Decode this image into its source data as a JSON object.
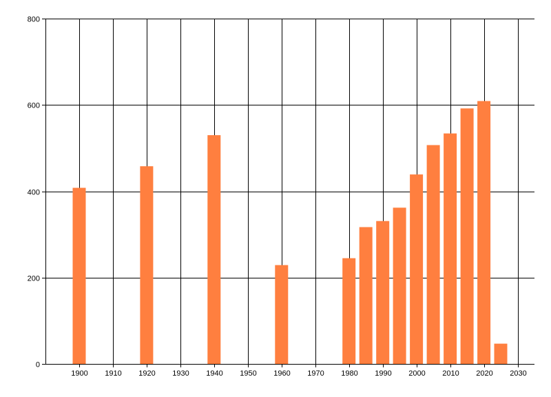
{
  "chart_data": {
    "type": "bar",
    "title": "",
    "xlabel": "",
    "ylabel": "",
    "x": [
      1900,
      1920,
      1940,
      1960,
      1980,
      1985,
      1990,
      1995,
      2000,
      2005,
      2010,
      2015,
      2020,
      2025
    ],
    "values": [
      408,
      458,
      530,
      229,
      245,
      317,
      331,
      362,
      439,
      507,
      534,
      592,
      609,
      47
    ],
    "xlim": [
      1890,
      2035
    ],
    "ylim": [
      0,
      800
    ],
    "x_ticks": [
      1900,
      1910,
      1920,
      1930,
      1940,
      1950,
      1960,
      1970,
      1980,
      1990,
      2000,
      2010,
      2020,
      2030
    ],
    "y_ticks": [
      0,
      200,
      400,
      600,
      800
    ],
    "grid": true,
    "bar_color": "#ff7f3f",
    "grid_color": "#000000"
  }
}
